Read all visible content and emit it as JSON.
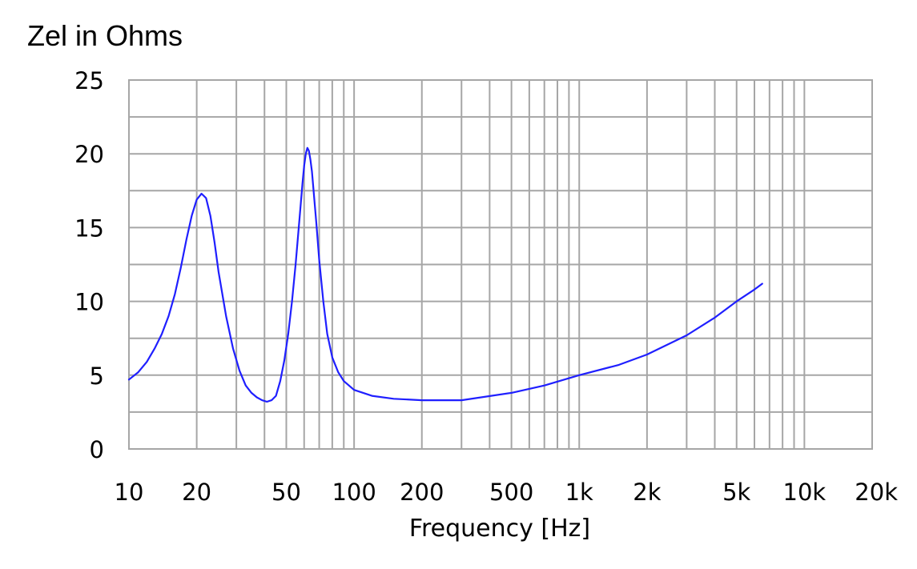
{
  "chart_data": {
    "type": "line",
    "title": "Zel in Ohms",
    "xlabel": "Frequency [Hz]",
    "ylabel": "",
    "xscale": "log",
    "xlim": [
      10,
      20000
    ],
    "ylim": [
      0,
      25
    ],
    "grid": true,
    "line_color": "#1f1fff",
    "grid_color": "#a6a6a6",
    "yticks": [
      {
        "value": 0,
        "label": "0"
      },
      {
        "value": 5,
        "label": "5"
      },
      {
        "value": 10,
        "label": "10"
      },
      {
        "value": 15,
        "label": "15"
      },
      {
        "value": 20,
        "label": "20"
      },
      {
        "value": 25,
        "label": "25"
      }
    ],
    "xticks": [
      {
        "value": 10,
        "label": "10"
      },
      {
        "value": 20,
        "label": "20"
      },
      {
        "value": 50,
        "label": "50"
      },
      {
        "value": 100,
        "label": "100"
      },
      {
        "value": 200,
        "label": "200"
      },
      {
        "value": 500,
        "label": "500"
      },
      {
        "value": 1000,
        "label": "1k"
      },
      {
        "value": 2000,
        "label": "2k"
      },
      {
        "value": 5000,
        "label": "5k"
      },
      {
        "value": 10000,
        "label": "10k"
      },
      {
        "value": 20000,
        "label": "20k"
      }
    ],
    "series": [
      {
        "x": [
          10,
          11,
          12,
          13,
          14,
          15,
          16,
          17,
          18,
          19,
          20,
          21,
          22,
          23,
          24,
          25,
          27,
          29,
          31,
          33,
          35,
          37,
          39,
          41,
          43,
          45,
          47,
          49,
          51,
          53,
          55,
          57,
          59,
          60,
          61,
          62,
          63,
          64,
          65,
          66,
          68,
          70,
          73,
          76,
          80,
          85,
          90,
          100,
          120,
          150,
          200,
          300,
          500,
          700,
          1000,
          1500,
          2000,
          3000,
          4000,
          5000,
          6000,
          6500
        ],
        "y": [
          4.7,
          5.2,
          5.9,
          6.8,
          7.8,
          9.0,
          10.5,
          12.3,
          14.2,
          15.8,
          16.9,
          17.3,
          17.0,
          15.8,
          14.0,
          12.0,
          9.0,
          6.8,
          5.3,
          4.3,
          3.8,
          3.5,
          3.3,
          3.2,
          3.3,
          3.6,
          4.6,
          6.0,
          7.8,
          10.0,
          12.5,
          15.3,
          18.0,
          19.2,
          20.0,
          20.4,
          20.2,
          19.6,
          18.8,
          17.6,
          15.3,
          12.8,
          10.0,
          7.8,
          6.2,
          5.2,
          4.6,
          4.0,
          3.6,
          3.4,
          3.3,
          3.3,
          3.8,
          4.3,
          5.0,
          5.7,
          6.4,
          7.7,
          8.9,
          10.0,
          10.8,
          11.2
        ]
      }
    ]
  }
}
